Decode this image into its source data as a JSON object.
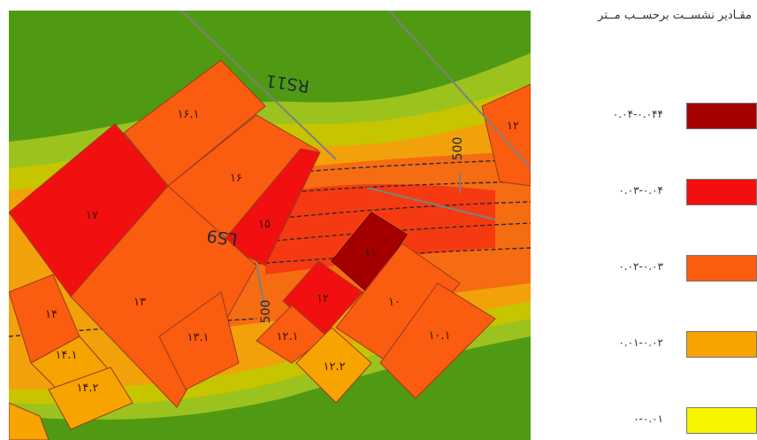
{
  "legend": {
    "title": "مقـادیر نشســت برحســب مــتر",
    "items": [
      {
        "label": "۰.۰۴-۰.۰۴۴",
        "color": "#a50000"
      },
      {
        "label": "۰.۰۳-۰.۰۴",
        "color": "#f20f0f"
      },
      {
        "label": "۰.۰۲-۰.۰۳",
        "color": "#fa5c10"
      },
      {
        "label": "۰.۰۱-۰.۰۲",
        "color": "#f7a300"
      },
      {
        "label": "۰-۰.۰۱",
        "color": "#f8f400"
      }
    ]
  },
  "map": {
    "roads": [
      "RS11",
      "LS9"
    ],
    "contours": [
      "500",
      "500"
    ],
    "plots": [
      {
        "id": "16.1",
        "label": "۱۶.۱",
        "color": "#fa5c10"
      },
      {
        "id": "16",
        "label": "۱۶",
        "color": "#fa5c10"
      },
      {
        "id": "17",
        "label": "۱۷",
        "color": "#f20f0f"
      },
      {
        "id": "15",
        "label": "۱۵",
        "color": "#f20f0f"
      },
      {
        "id": "13",
        "label": "۱۳",
        "color": "#fa5c10"
      },
      {
        "id": "13.1",
        "label": "۱۳.۱",
        "color": "#fa5c10"
      },
      {
        "id": "14",
        "label": "۱۴",
        "color": "#fa5c10"
      },
      {
        "id": "14.1",
        "label": "۱۴.۱",
        "color": "#f7a300"
      },
      {
        "id": "14.2",
        "label": "۱۴.۲",
        "color": "#f7a300"
      },
      {
        "id": "11",
        "label": "۱۱",
        "color": "#a50000"
      },
      {
        "id": "12",
        "label": "۱۲",
        "color": "#f20f0f"
      },
      {
        "id": "12.1",
        "label": "۱۲.۱",
        "color": "#fa5c10"
      },
      {
        "id": "12.2",
        "label": "۱۲.۲",
        "color": "#f7a300"
      },
      {
        "id": "10",
        "label": "۱۰",
        "color": "#fa5c10"
      },
      {
        "id": "10.1",
        "label": "۱۰.۱",
        "color": "#fa5c10"
      },
      {
        "id": "edge",
        "label": "۱۲",
        "color": "#fa5c10"
      }
    ]
  }
}
